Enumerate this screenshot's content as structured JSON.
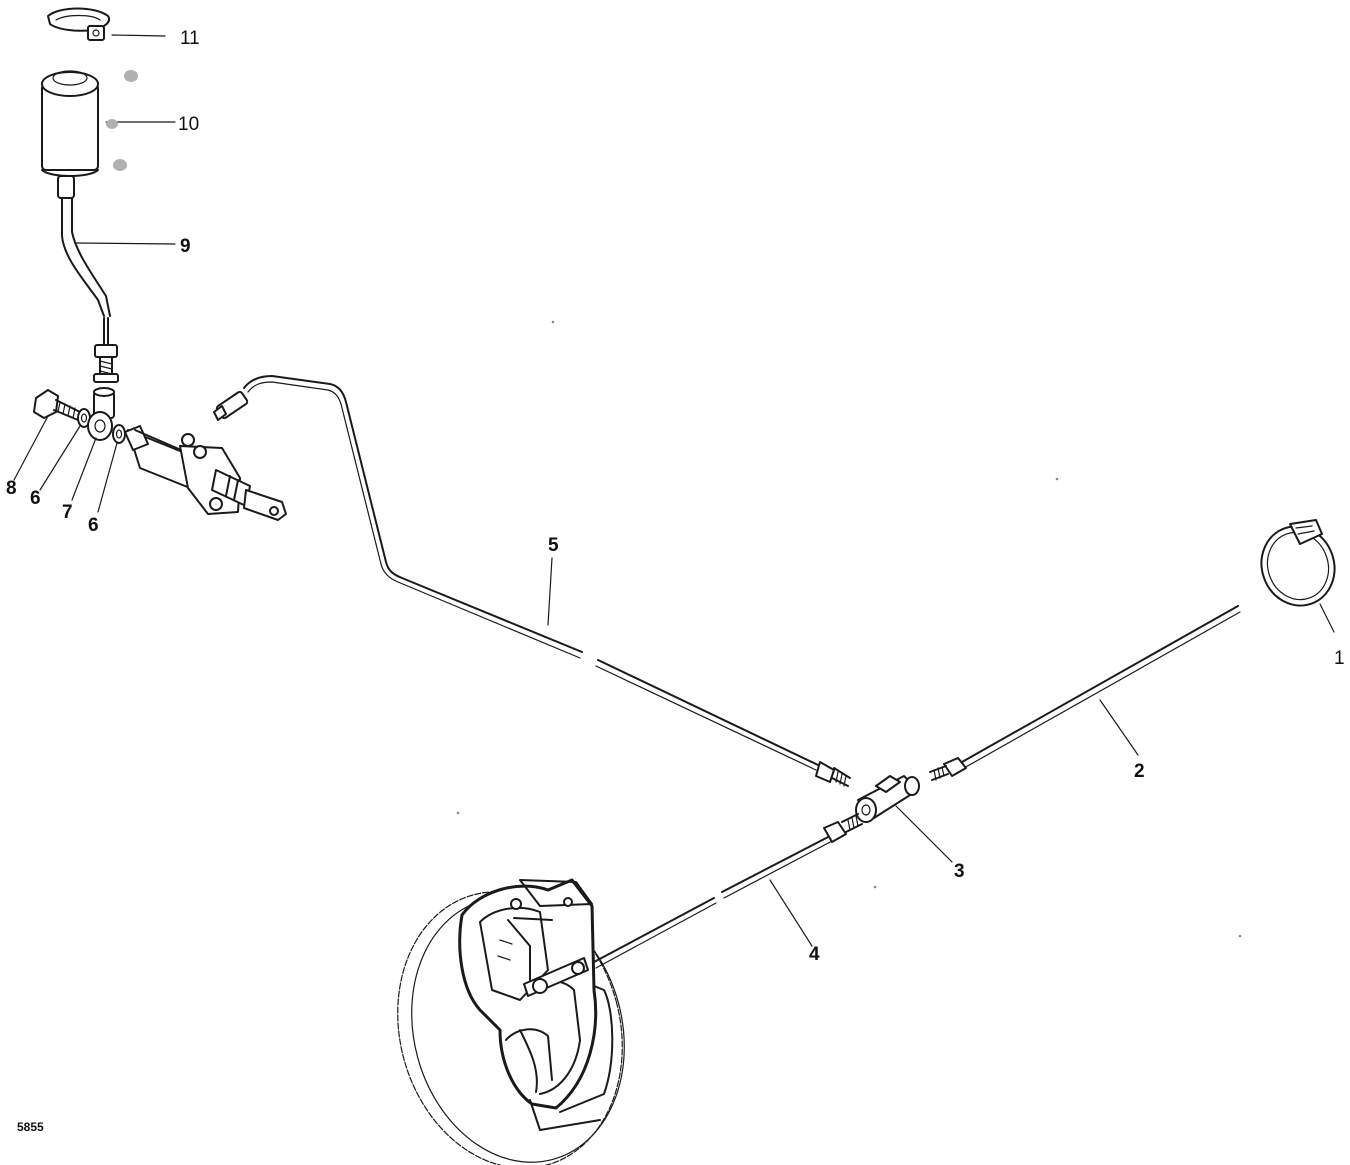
{
  "figure_number": "5855",
  "callouts": {
    "c1": "1",
    "c2": "2",
    "c3": "3",
    "c4": "4",
    "c5": "5",
    "c6a": "6",
    "c6b": "6",
    "c7": "7",
    "c8": "8",
    "c9": "9",
    "c10": "10",
    "c11": "11"
  },
  "colors": {
    "ink": "#1a1a1a",
    "paper": "#ffffff",
    "smudge": "#b0b0b0"
  },
  "parts": [
    "hose-clip",
    "pipe",
    "tee-piece",
    "pipe",
    "pipe",
    "washer",
    "banjo-union",
    "banjo-bolt",
    "hose",
    "reservoir",
    "reservoir-clip",
    "master-cylinder",
    "caliper",
    "brake-disc"
  ]
}
